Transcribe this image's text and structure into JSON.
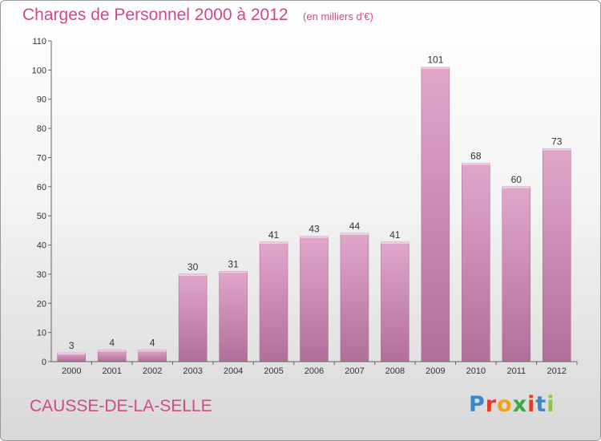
{
  "header": {
    "title": "Charges de Personnel 2000 à 2012",
    "subtitle": "(en milliers d'€)"
  },
  "footer": {
    "commune": "CAUSSE-DE-LA-SELLE",
    "logo_text": "Proxiti"
  },
  "colors": {
    "accent": "#d2488a",
    "bar_top": "#e2a6cb",
    "bar_bottom": "#b06f98",
    "logo_letters": [
      "#3a86c8",
      "#e23b2e",
      "#f0a21b",
      "#3ba845",
      "#e23b2e",
      "#3a86c8",
      "#8cc63e"
    ]
  },
  "chart_data": {
    "type": "bar",
    "categories": [
      "2000",
      "2001",
      "2002",
      "2003",
      "2004",
      "2005",
      "2006",
      "2007",
      "2008",
      "2009",
      "2010",
      "2011",
      "2012"
    ],
    "values": [
      3,
      4,
      4,
      30,
      31,
      41,
      43,
      44,
      41,
      101,
      68,
      60,
      73
    ],
    "title": "Charges de Personnel 2000 à 2012",
    "subtitle": "(en milliers d'€)",
    "xlabel": "",
    "ylabel": "",
    "ylim": [
      0,
      110
    ],
    "yticks": [
      0,
      10,
      20,
      30,
      40,
      50,
      60,
      70,
      80,
      90,
      100,
      110
    ],
    "grid": false,
    "legend": "none"
  }
}
